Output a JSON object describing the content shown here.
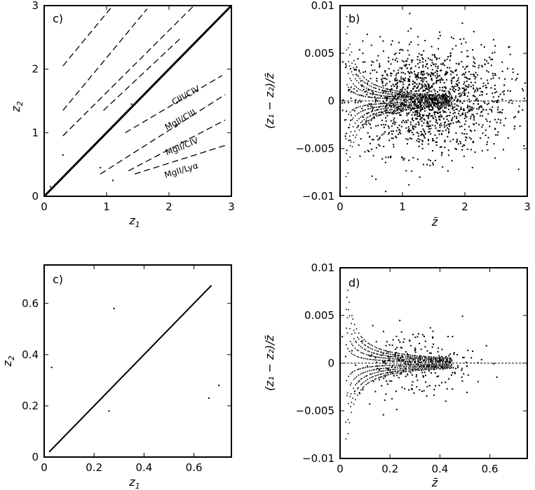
{
  "chart_data": [
    {
      "panel_label": "c)",
      "type": "scatter",
      "xlabel": "z",
      "xlabel_sub": "1",
      "ylabel": "z",
      "ylabel_sub": "2",
      "xlim": [
        0,
        3
      ],
      "ylim": [
        0,
        3
      ],
      "xticks": [
        "0",
        "1",
        "2",
        "3"
      ],
      "yticks": [
        "0",
        "1",
        "2",
        "3"
      ],
      "diagonal": {
        "x": [
          0,
          3
        ],
        "y": [
          0,
          3
        ]
      },
      "dashed_lines": [
        {
          "x": [
            0.3,
            1.1
          ],
          "y": [
            2.05,
            3.0
          ]
        },
        {
          "x": [
            0.3,
            1.65
          ],
          "y": [
            1.35,
            2.95
          ]
        },
        {
          "x": [
            0.3,
            2.4
          ],
          "y": [
            0.95,
            3.0
          ]
        },
        {
          "x": [
            0.95,
            2.2
          ],
          "y": [
            1.35,
            2.5
          ]
        },
        {
          "x": [
            1.3,
            2.85
          ],
          "y": [
            1.0,
            1.9
          ]
        },
        {
          "x": [
            0.9,
            2.9
          ],
          "y": [
            0.35,
            1.6
          ]
        },
        {
          "x": [
            1.35,
            2.9
          ],
          "y": [
            0.4,
            1.2
          ]
        },
        {
          "x": [
            1.45,
            2.9
          ],
          "y": [
            0.35,
            0.8
          ]
        }
      ],
      "annotations": [
        "CIII/CIV",
        "MgII/CIII",
        "MgII/CIV",
        "MgII/Lyα"
      ],
      "points": {
        "x": [
          0.9,
          1.4,
          2.2,
          0.3,
          1.1,
          0.1
        ],
        "y": [
          0.45,
          1.45,
          0.85,
          0.65,
          0.25,
          0.15
        ]
      }
    },
    {
      "panel_label": "b)",
      "type": "scatter",
      "xlabel": "z̄",
      "ylabel": "(z₁ − z₂)/z̄",
      "xlim": [
        0,
        3
      ],
      "ylim": [
        -0.01,
        0.01
      ],
      "xticks": [
        "0",
        "1",
        "2",
        "3"
      ],
      "yticks": [
        "0.01",
        "0.005",
        "0",
        "−0.005",
        "−0.01"
      ],
      "generated_scatter": {
        "n_points": 1500,
        "x_center": 1.4,
        "x_spread": 0.65,
        "y_spread": 0.0028
      }
    },
    {
      "panel_label": "c)",
      "type": "scatter",
      "xlabel": "z",
      "xlabel_sub": "1",
      "ylabel": "z",
      "ylabel_sub": "2",
      "xlim": [
        0,
        0.75
      ],
      "ylim": [
        0,
        0.75
      ],
      "xticks": [
        "0",
        "0.2",
        "0.4",
        "0.6"
      ],
      "yticks": [
        "0",
        "0.2",
        "0.4",
        "0.6"
      ],
      "diagonal": {
        "x": [
          0.02,
          0.67
        ],
        "y": [
          0.02,
          0.67
        ]
      },
      "points": {
        "x": [
          0.28,
          0.26,
          0.66,
          0.03,
          0.7
        ],
        "y": [
          0.58,
          0.18,
          0.23,
          0.35,
          0.28
        ]
      }
    },
    {
      "panel_label": "d)",
      "type": "scatter",
      "xlabel": "z̄",
      "ylabel": "(z₁ − z₂)/z̄",
      "xlim": [
        0,
        0.75
      ],
      "ylim": [
        -0.01,
        0.01
      ],
      "xticks": [
        "0",
        "0.2",
        "0.4",
        "0.6"
      ],
      "yticks": [
        "0.01",
        "0.005",
        "0",
        "−0.005",
        "−0.01"
      ],
      "generated_scatter": {
        "n_points": 260,
        "x_center": 0.3,
        "x_spread": 0.12,
        "y_spread": 0.0018
      }
    }
  ]
}
